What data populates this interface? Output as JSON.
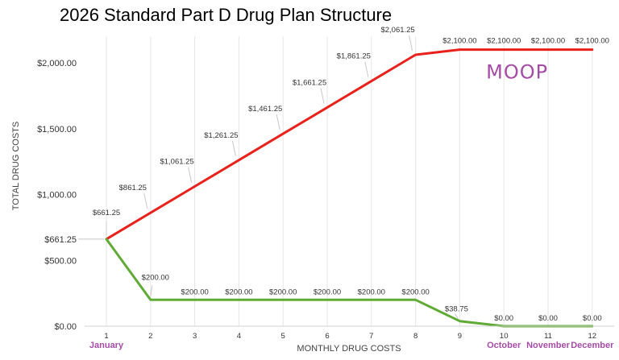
{
  "chart_data": {
    "type": "line",
    "title": "2026 Standard Part D Drug Plan Structure",
    "xlabel": "MONTHLY DRUG COSTS",
    "ylabel": "TOTAL DRUG COSTS",
    "x": [
      1,
      2,
      3,
      4,
      5,
      6,
      7,
      8,
      9,
      10,
      11,
      12
    ],
    "xlim": [
      0.5,
      12.5
    ],
    "ylim": [
      0,
      2100
    ],
    "yticks": [
      {
        "value": 0,
        "label": "$0.00"
      },
      {
        "value": 500,
        "label": "$500.00"
      },
      {
        "value": 661.25,
        "label": "$661.25"
      },
      {
        "value": 1000,
        "label": "$1,000.00"
      },
      {
        "value": 1500,
        "label": "$1,500.00"
      },
      {
        "value": 2000,
        "label": "$2,000.00"
      }
    ],
    "month_labels": [
      {
        "x": 1,
        "label": "January"
      },
      {
        "x": 10,
        "label": "October"
      },
      {
        "x": 11,
        "label": "November"
      },
      {
        "x": 12,
        "label": "December"
      }
    ],
    "grid": "vertical",
    "series": [
      {
        "color": "#e8221b",
        "values": [
          661.25,
          861.25,
          1061.25,
          1261.25,
          1461.25,
          1661.25,
          1861.25,
          2061.25,
          2100,
          2100,
          2100,
          2100
        ],
        "labels": [
          "$661.25",
          "$861.25",
          "$1,061.25",
          "$1,261.25",
          "$1,461.25",
          "$1,661.25",
          "$1,861.25",
          "$2,061.25",
          "$2,100.00",
          "$2,100.00",
          "$2,100.00",
          "$2,100.00"
        ]
      },
      {
        "color": "#5fab35",
        "values": [
          661.25,
          200,
          200,
          200,
          200,
          200,
          200,
          200,
          38.75,
          0,
          0,
          0
        ],
        "labels": [
          "",
          "$200.00",
          "$200.00",
          "$200.00",
          "$200.00",
          "$200.00",
          "$200.00",
          "$200.00",
          "$38.75",
          "$0.00",
          "$0.00",
          "$0.00"
        ]
      }
    ],
    "annotations": [
      {
        "text": "MOOP",
        "x": 10.3,
        "y": 1930,
        "color": "#a64ca6"
      }
    ]
  }
}
